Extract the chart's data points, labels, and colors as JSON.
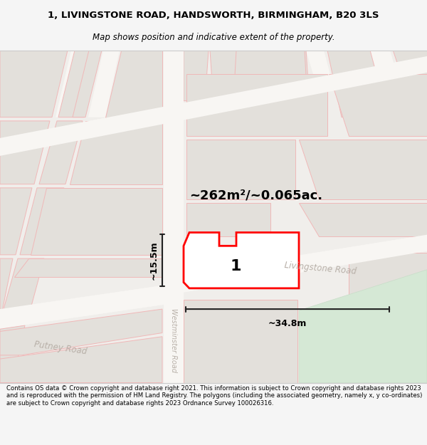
{
  "title_line1": "1, LIVINGSTONE ROAD, HANDSWORTH, BIRMINGHAM, B20 3LS",
  "title_line2": "Map shows position and indicative extent of the property.",
  "area_text": "~262m²/~0.065ac.",
  "label_number": "1",
  "dim_width": "~34.8m",
  "dim_height": "~15.5m",
  "road_label_livingstone": "Livingstone Road",
  "road_label_westminster": "Westminster Road",
  "road_label_putney": "Putney Road",
  "footer_text": "Contains OS data © Crown copyright and database right 2021. This information is subject to Crown copyright and database rights 2023 and is reproduced with the permission of HM Land Registry. The polygons (including the associated geometry, namely x, y co-ordinates) are subject to Crown copyright and database rights 2023 Ordnance Survey 100026316.",
  "bg_color": "#f5f5f5",
  "map_bg": "#f0eeeb",
  "block_color": "#e3e0db",
  "block_edge": "#f0b8b8",
  "green_area": "#d5e8d5",
  "green_edge": "#c8ddc8",
  "road_color": "#f8f6f3",
  "plot_fill": "#ffffff",
  "plot_edge": "#ff0000",
  "dim_line_color": "#222222",
  "road_label_color": "#b8b0a8",
  "title_fontsize": 9.5,
  "subtitle_fontsize": 8.5,
  "footer_fontsize": 6.1
}
